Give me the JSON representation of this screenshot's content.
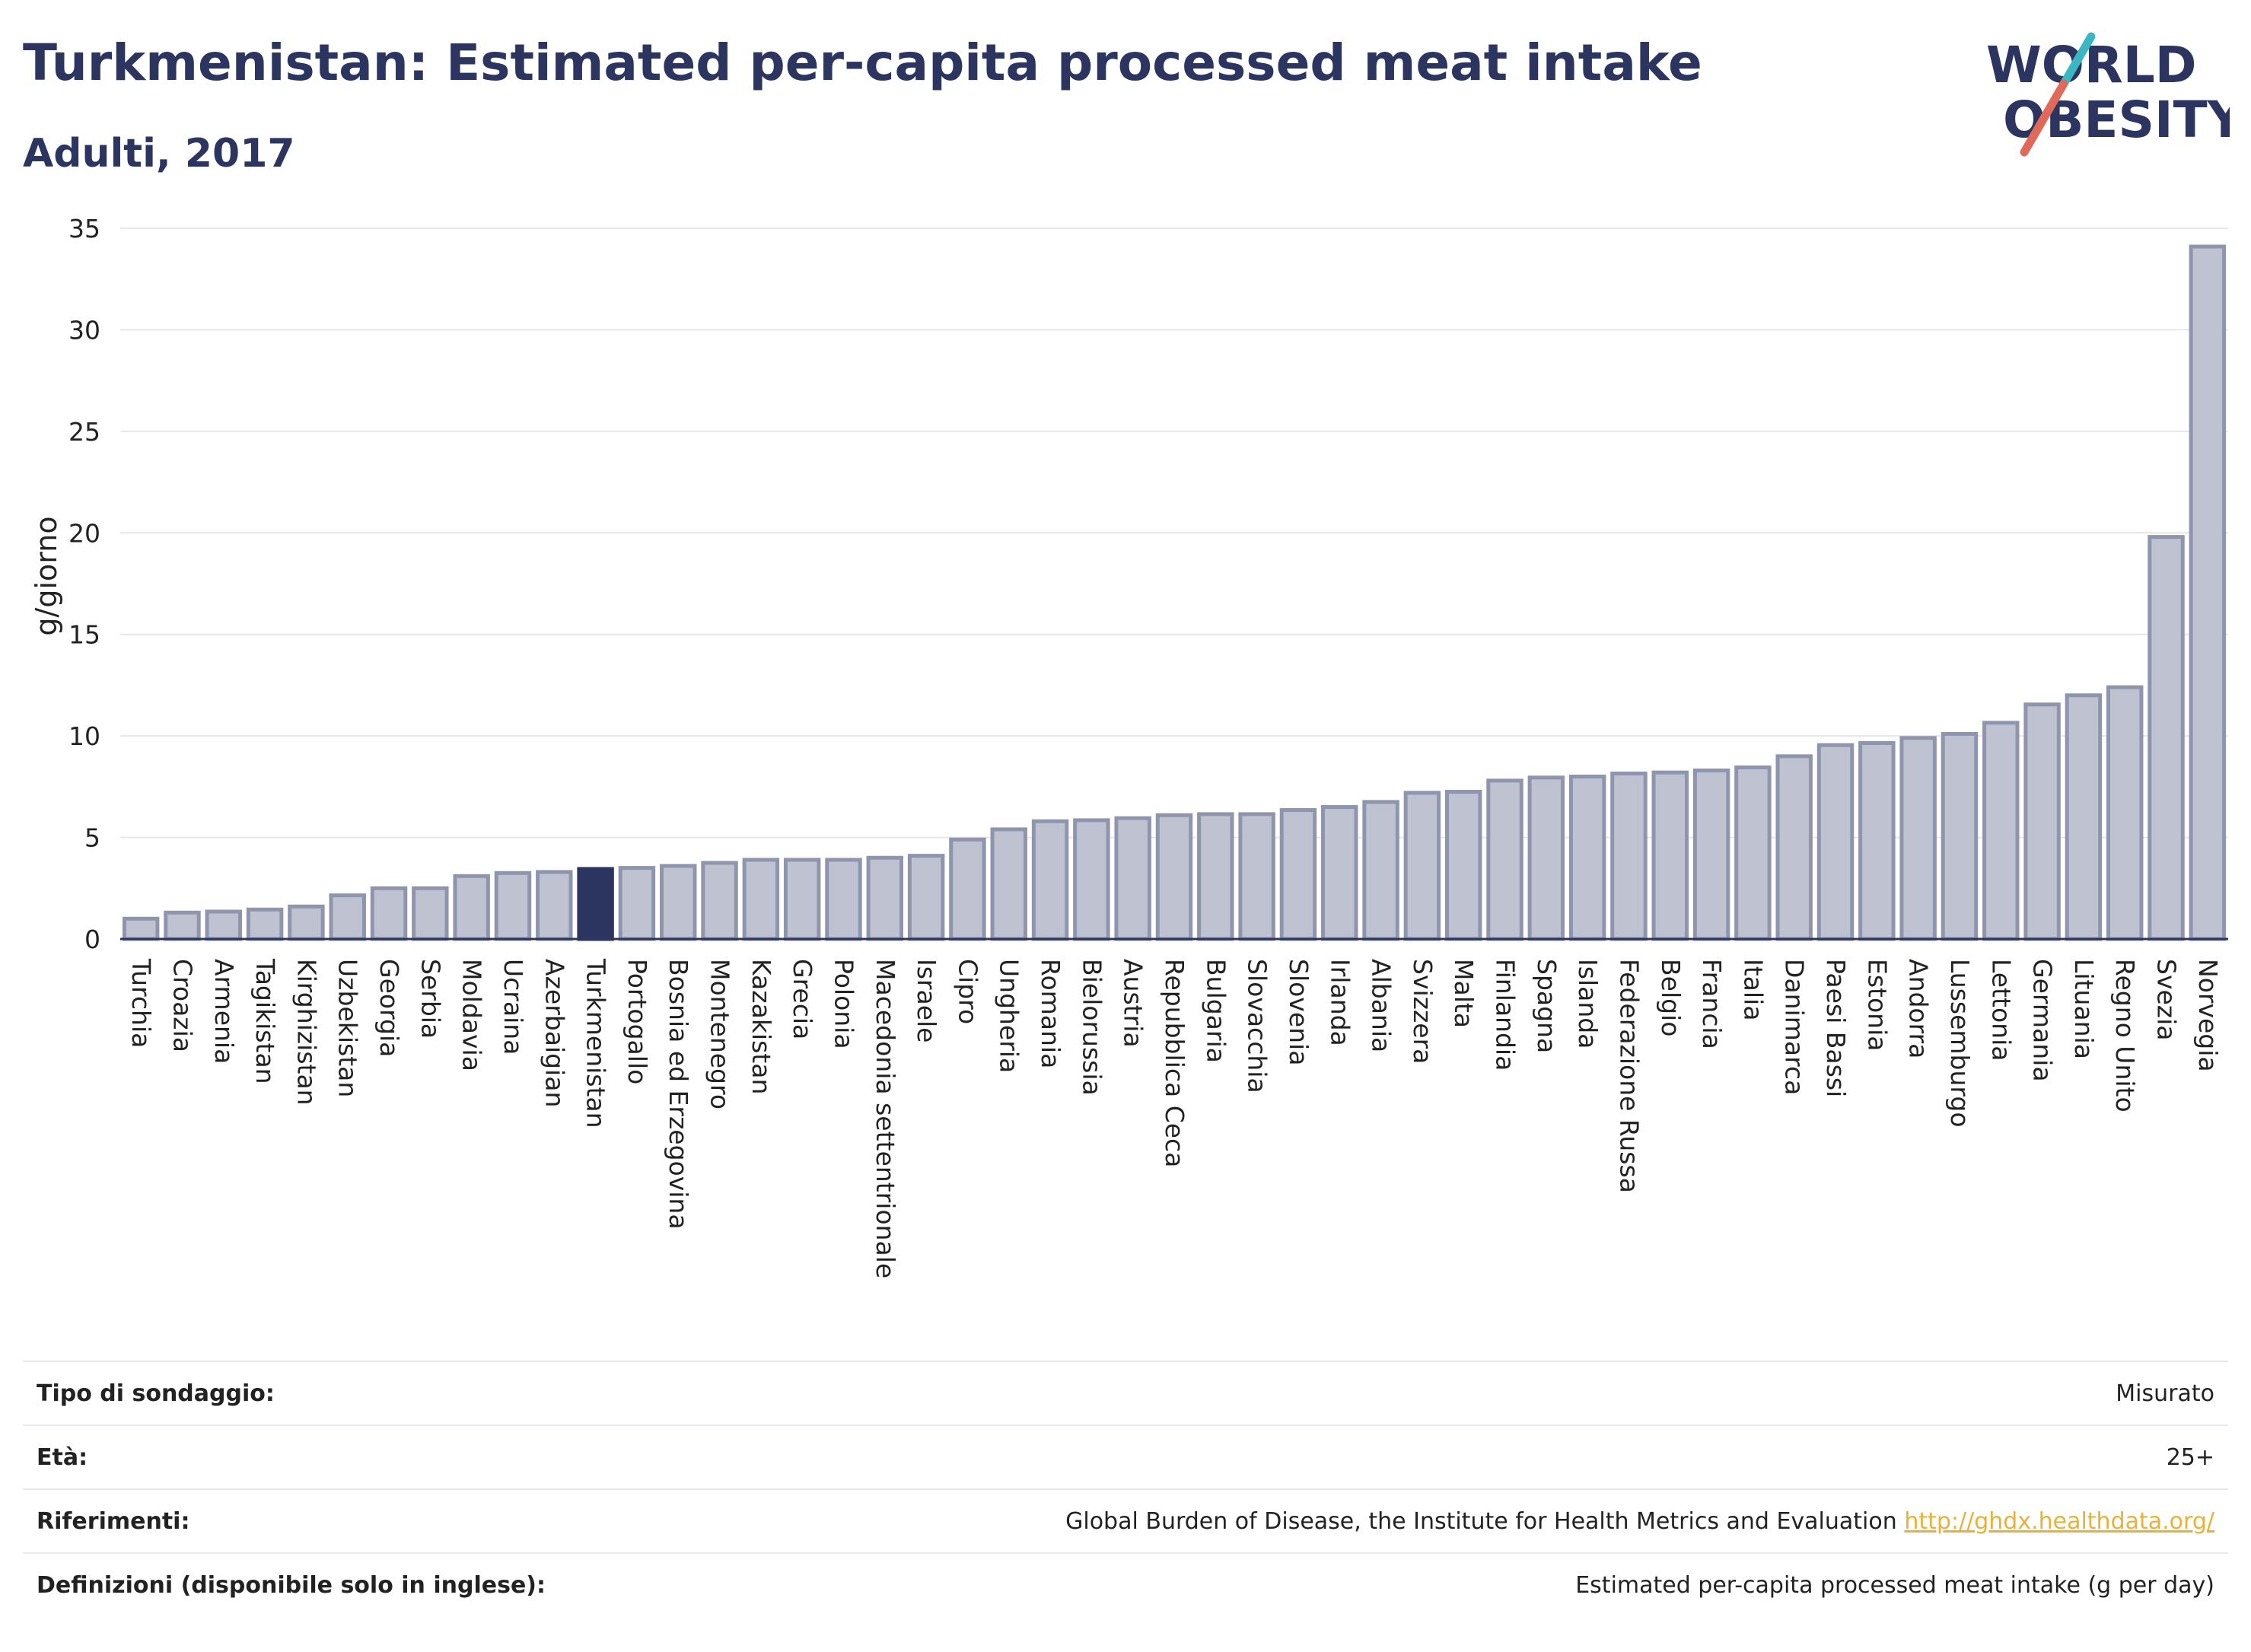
{
  "header": {
    "title": "Turkmenistan: Estimated per-capita processed meat intake",
    "subtitle": "Adulti, 2017"
  },
  "logo": {
    "line1": "WORLD",
    "line2": "OBESITY",
    "colors": {
      "text": "#2b3560",
      "slash_red": "#e06a5a",
      "slash_teal": "#3bb7c4"
    }
  },
  "colors": {
    "bar": "#bfc2d0",
    "bar_stroke": "#8f95ad",
    "highlight": "#2b3560",
    "grid": "#e6e6ec"
  },
  "chart_data": {
    "type": "bar",
    "ylabel": "g/giorno",
    "ylim": [
      0,
      35
    ],
    "yticks": [
      0,
      5,
      10,
      15,
      20,
      25,
      30,
      35
    ],
    "grid": true,
    "highlight": "Turkmenistan",
    "categories": [
      "Turchia",
      "Croazia",
      "Armenia",
      "Tagikistan",
      "Kirghizistan",
      "Uzbekistan",
      "Georgia",
      "Serbia",
      "Moldavia",
      "Ucraina",
      "Azerbaigian",
      "Turkmenistan",
      "Portogallo",
      "Bosnia ed Erzegovina",
      "Montenegro",
      "Kazakistan",
      "Grecia",
      "Polonia",
      "Macedonia settentrionale",
      "Israele",
      "Cipro",
      "Ungheria",
      "Romania",
      "Bielorussia",
      "Austria",
      "Repubblica Ceca",
      "Bulgaria",
      "Slovacchia",
      "Slovenia",
      "Irlanda",
      "Albania",
      "Svizzera",
      "Malta",
      "Finlandia",
      "Spagna",
      "Islanda",
      "Federazione Russa",
      "Belgio",
      "Francia",
      "Italia",
      "Danimarca",
      "Paesi Bassi",
      "Estonia",
      "Andorra",
      "Lussemburgo",
      "Lettonia",
      "Germania",
      "Lituania",
      "Regno Unito",
      "Svezia",
      "Norvegia"
    ],
    "values": [
      1.0,
      1.3,
      1.35,
      1.45,
      1.6,
      2.15,
      2.5,
      2.5,
      3.1,
      3.25,
      3.3,
      3.45,
      3.5,
      3.6,
      3.75,
      3.9,
      3.9,
      3.9,
      4.0,
      4.1,
      4.9,
      5.4,
      5.8,
      5.85,
      5.95,
      6.1,
      6.15,
      6.15,
      6.35,
      6.5,
      6.75,
      7.2,
      7.25,
      7.8,
      7.95,
      8.0,
      8.15,
      8.2,
      8.3,
      8.45,
      9.0,
      9.55,
      9.65,
      9.9,
      10.1,
      10.65,
      11.55,
      12.0,
      12.4,
      19.8,
      34.1
    ]
  },
  "info": {
    "survey_label": "Tipo di sondaggio:",
    "survey_value": "Misurato",
    "age_label": "Età:",
    "age_value": "25+",
    "refs_label": "Riferimenti:",
    "refs_value": "Global Burden of Disease, the Institute for Health Metrics and Evaluation",
    "refs_link": "http://ghdx.healthdata.org/",
    "defs_label": "Definizioni (disponibile solo in inglese):",
    "defs_value": "Estimated per-capita processed meat intake (g per day)"
  }
}
